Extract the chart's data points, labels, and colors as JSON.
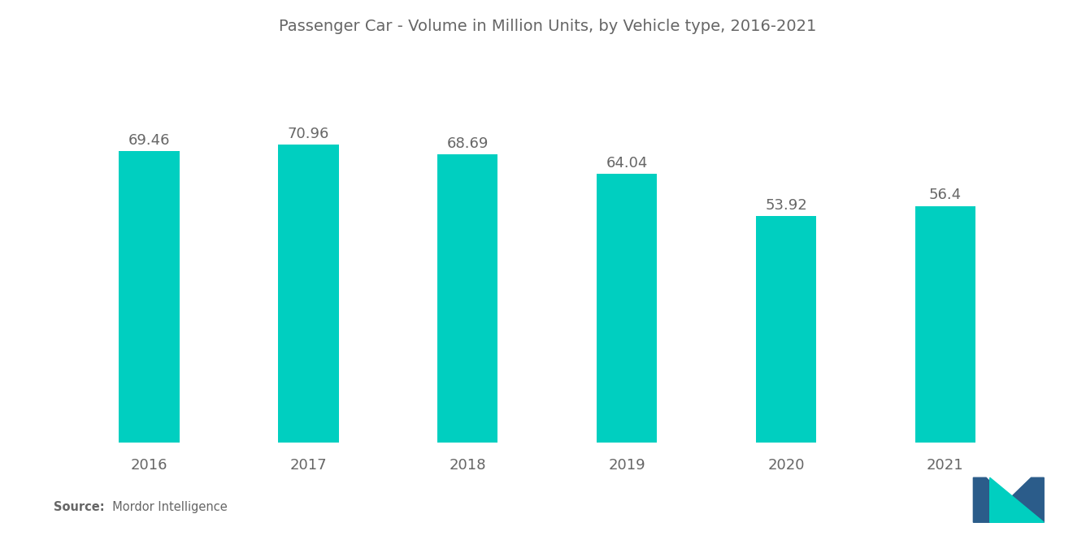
{
  "title": "Passenger Car - Volume in Million Units, by Vehicle type, 2016-2021",
  "categories": [
    "2016",
    "2017",
    "2018",
    "2019",
    "2020",
    "2021"
  ],
  "values": [
    69.46,
    70.96,
    68.69,
    64.04,
    53.92,
    56.4
  ],
  "bar_color": "#00CFC0",
  "background_color": "#ffffff",
  "title_fontsize": 14,
  "label_fontsize": 13,
  "value_fontsize": 13,
  "source_bold": "Source:",
  "source_normal": "  Mordor Intelligence",
  "ylim": [
    0,
    90
  ],
  "bar_width": 0.38,
  "text_color": "#666666"
}
